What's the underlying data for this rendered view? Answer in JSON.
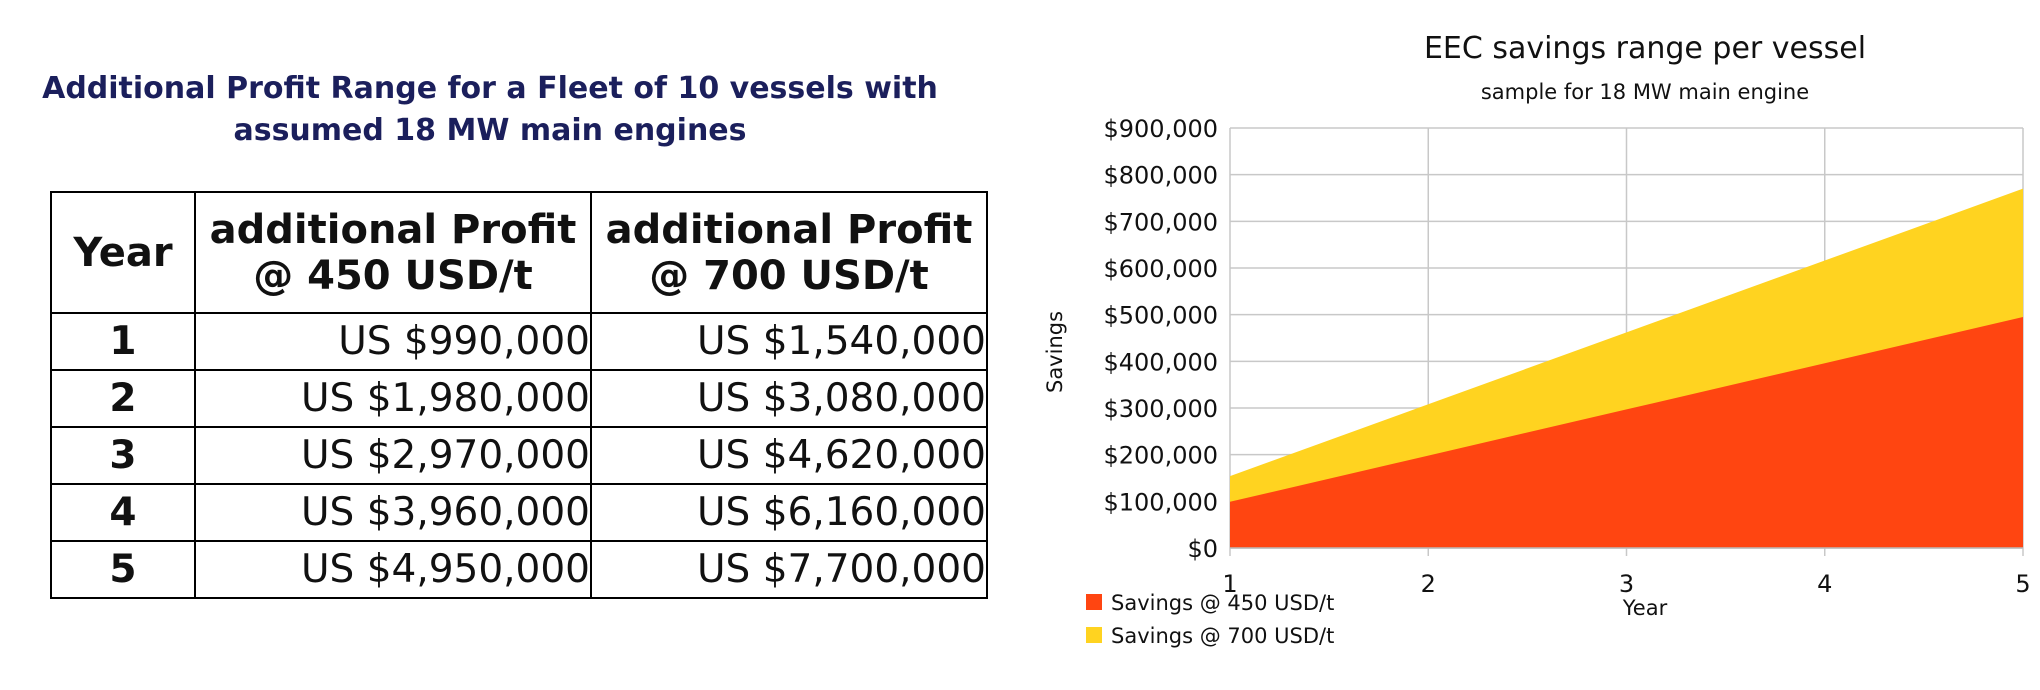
{
  "left": {
    "title_line1": "Additional Profit Range for a Fleet of 10 vessels with",
    "title_line2": "assumed 18 MW main engines",
    "table": {
      "headers": {
        "year": "Year",
        "col_a_line1": "additional Profit",
        "col_a_line2": "@ 450 USD/t",
        "col_b_line1": "additional Profit",
        "col_b_line2": "@ 700 USD/t"
      },
      "rows": [
        {
          "year": "1",
          "a": "US $990,000",
          "b": "US $1,540,000"
        },
        {
          "year": "2",
          "a": "US $1,980,000",
          "b": "US $3,080,000"
        },
        {
          "year": "3",
          "a": "US $2,970,000",
          "b": "US $4,620,000"
        },
        {
          "year": "4",
          "a": "US $3,960,000",
          "b": "US $6,160,000"
        },
        {
          "year": "5",
          "a": "US $4,950,000",
          "b": "US $7,700,000"
        }
      ]
    }
  },
  "colors": {
    "series_450": "#ff4511",
    "series_700": "#ffd320",
    "grid": "#c8c8c8",
    "title_blue": "#1b1f5c"
  },
  "chart_data": {
    "type": "area",
    "title": "EEC savings range per vessel",
    "subtitle": "sample for 18 MW main engine",
    "xlabel": "Year",
    "ylabel": "Savings",
    "x": [
      1,
      2,
      3,
      4,
      5
    ],
    "xlim": [
      1,
      5
    ],
    "ylim": [
      0,
      900000
    ],
    "y_ticks": [
      0,
      100000,
      200000,
      300000,
      400000,
      500000,
      600000,
      700000,
      800000,
      900000
    ],
    "y_tick_labels": [
      "$0",
      "$100,000",
      "$200,000",
      "$300,000",
      "$400,000",
      "$500,000",
      "$600,000",
      "$700,000",
      "$800,000",
      "$900,000"
    ],
    "x_tick_labels": [
      "1",
      "2",
      "3",
      "4",
      "5"
    ],
    "grid": true,
    "legend": "bottom-left",
    "series": [
      {
        "name": "Savings @ 450 USD/t",
        "values": [
          99000,
          198000,
          297000,
          396000,
          495000
        ]
      },
      {
        "name": "Savings @ 700 USD/t",
        "values": [
          154000,
          308000,
          462000,
          616000,
          770000
        ]
      }
    ]
  }
}
